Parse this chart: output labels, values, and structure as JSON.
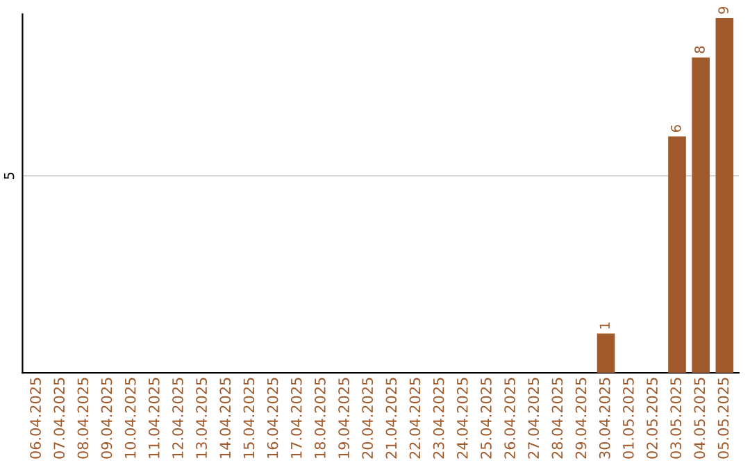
{
  "chart_data": {
    "type": "bar",
    "categories": [
      "06.04.2025",
      "07.04.2025",
      "08.04.2025",
      "09.04.2025",
      "10.04.2025",
      "11.04.2025",
      "12.04.2025",
      "13.04.2025",
      "14.04.2025",
      "15.04.2025",
      "16.04.2025",
      "17.04.2025",
      "18.04.2025",
      "19.04.2025",
      "20.04.2025",
      "21.04.2025",
      "22.04.2025",
      "23.04.2025",
      "24.04.2025",
      "25.04.2025",
      "26.04.2025",
      "27.04.2025",
      "28.04.2025",
      "29.04.2025",
      "30.04.2025",
      "01.05.2025",
      "02.05.2025",
      "03.05.2025",
      "04.05.2025",
      "05.05.2025"
    ],
    "values": [
      null,
      null,
      null,
      null,
      null,
      null,
      null,
      null,
      null,
      null,
      null,
      null,
      null,
      null,
      null,
      null,
      null,
      null,
      null,
      null,
      null,
      null,
      null,
      null,
      1,
      null,
      null,
      6,
      8,
      9
    ],
    "value_labels": [
      null,
      null,
      null,
      null,
      null,
      null,
      null,
      null,
      null,
      null,
      null,
      null,
      null,
      null,
      null,
      null,
      null,
      null,
      null,
      null,
      null,
      null,
      null,
      null,
      "1",
      null,
      null,
      "6",
      "8",
      "9"
    ],
    "color": "#a0592a",
    "ylim": [
      0,
      9.1
    ],
    "ref_lines": [
      {
        "axis": "y",
        "value": 5,
        "label": "5",
        "color": "#cccccc"
      }
    ]
  }
}
